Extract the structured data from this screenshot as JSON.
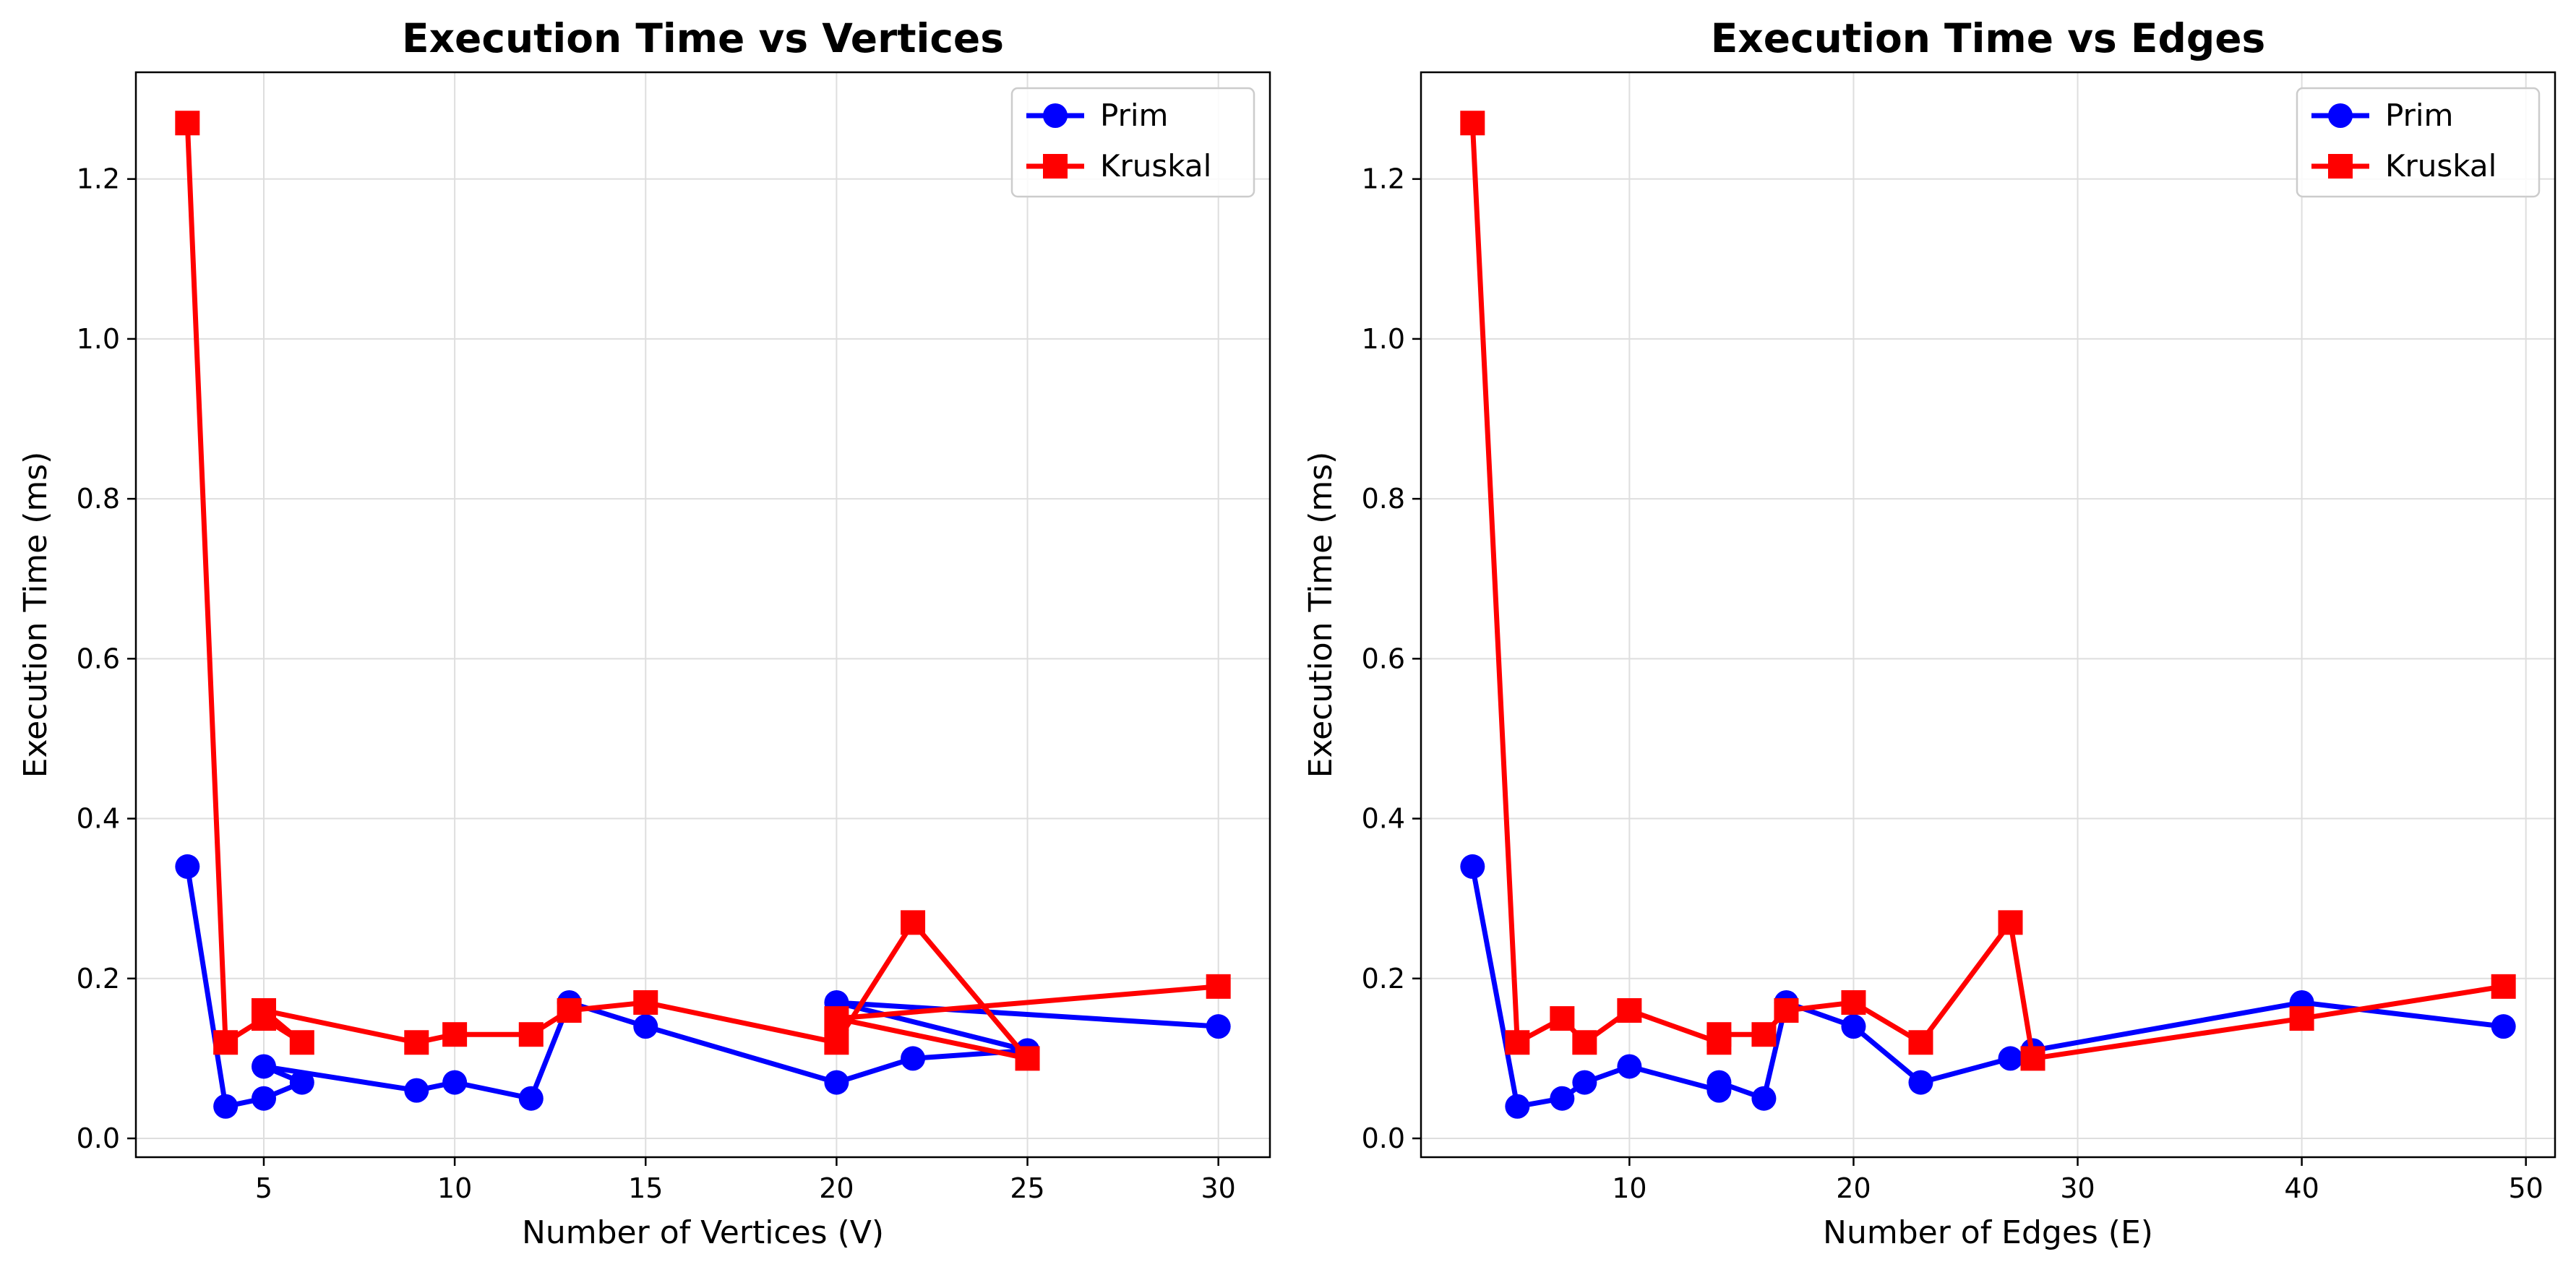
{
  "chart_data": [
    {
      "type": "line",
      "title": "Execution Time vs Vertices",
      "xlabel": "Number of Vertices (V)",
      "ylabel": "Execution Time (ms)",
      "xlim": [
        1.65,
        31.35
      ],
      "ylim": [
        -0.0235,
        1.3335
      ],
      "xticks": [
        5,
        10,
        15,
        20,
        25,
        30
      ],
      "yticks": [
        0.0,
        0.2,
        0.4,
        0.6,
        0.8,
        1.0,
        1.2
      ],
      "grid": true,
      "legend_position": "top-right",
      "series": [
        {
          "name": "Prim",
          "color": "#0000ff",
          "marker": "circle",
          "x": [
            3,
            4,
            5,
            6,
            5,
            9,
            10,
            12,
            13,
            15,
            20,
            22,
            25,
            20,
            30
          ],
          "y": [
            0.34,
            0.04,
            0.05,
            0.07,
            0.09,
            0.06,
            0.07,
            0.05,
            0.17,
            0.14,
            0.07,
            0.1,
            0.11,
            0.17,
            0.14
          ]
        },
        {
          "name": "Kruskal",
          "color": "#ff0000",
          "marker": "square",
          "x": [
            3,
            4,
            5,
            6,
            5,
            9,
            10,
            12,
            13,
            15,
            20,
            22,
            25,
            20,
            30
          ],
          "y": [
            1.27,
            0.12,
            0.15,
            0.12,
            0.16,
            0.12,
            0.13,
            0.13,
            0.16,
            0.17,
            0.12,
            0.27,
            0.1,
            0.15,
            0.19
          ]
        }
      ]
    },
    {
      "type": "line",
      "title": "Execution Time vs Edges",
      "xlabel": "Number of Edges (E)",
      "ylabel": "Execution Time (ms)",
      "xlim": [
        0.7,
        51.3
      ],
      "ylim": [
        -0.0235,
        1.3335
      ],
      "xticks": [
        10,
        20,
        30,
        40,
        50
      ],
      "yticks": [
        0.0,
        0.2,
        0.4,
        0.6,
        0.8,
        1.0,
        1.2
      ],
      "grid": true,
      "legend_position": "top-right",
      "series": [
        {
          "name": "Prim",
          "color": "#0000ff",
          "marker": "circle",
          "x": [
            3,
            5,
            7,
            8,
            10,
            14,
            14,
            16,
            17,
            20,
            23,
            27,
            28,
            40,
            49
          ],
          "y": [
            0.34,
            0.04,
            0.05,
            0.07,
            0.09,
            0.06,
            0.07,
            0.05,
            0.17,
            0.14,
            0.07,
            0.1,
            0.11,
            0.17,
            0.14
          ]
        },
        {
          "name": "Kruskal",
          "color": "#ff0000",
          "marker": "square",
          "x": [
            3,
            5,
            7,
            8,
            10,
            14,
            14,
            16,
            17,
            20,
            23,
            27,
            28,
            40,
            49
          ],
          "y": [
            1.27,
            0.12,
            0.15,
            0.12,
            0.16,
            0.12,
            0.13,
            0.13,
            0.16,
            0.17,
            0.12,
            0.27,
            0.1,
            0.15,
            0.19
          ]
        }
      ]
    }
  ]
}
